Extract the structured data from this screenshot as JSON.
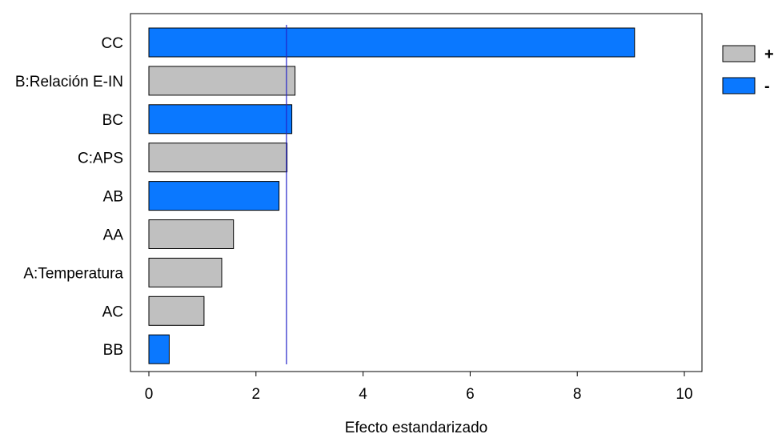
{
  "chart_data": {
    "type": "bar",
    "orientation": "horizontal",
    "title": "",
    "xlabel": "Efecto estandarizado",
    "ylabel": "",
    "xlim": [
      0,
      10
    ],
    "xticks": [
      0,
      2,
      4,
      6,
      8,
      10
    ],
    "grid": false,
    "legend_position": "top-right",
    "reference_line": 2.57,
    "categories": [
      "CC",
      "B:Relación E-IN",
      "BC",
      "C:APS",
      "AB",
      "AA",
      "A:Temperatura",
      "AC",
      "BB"
    ],
    "values": [
      9.07,
      2.73,
      2.67,
      2.58,
      2.43,
      1.58,
      1.36,
      1.03,
      0.38
    ],
    "signs": [
      "-",
      "+",
      "-",
      "+",
      "-",
      "+",
      "+",
      "+",
      "-"
    ],
    "series": [
      {
        "name": "+",
        "color": "#c0c0c0"
      },
      {
        "name": "-",
        "color": "#0a78ff"
      }
    ],
    "reference_line_color": "#2323c8"
  }
}
